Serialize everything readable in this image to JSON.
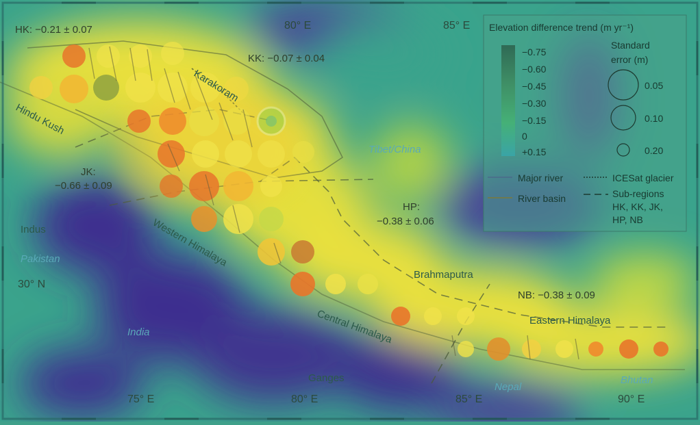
{
  "legend": {
    "title": "Elevation difference trend (m yr⁻¹)",
    "trend_scale": [
      "−0.75",
      "−0.60",
      "−0.45",
      "−0.30",
      "−0.15",
      "0",
      "+0.15"
    ],
    "standard_error_title_1": "Standard",
    "standard_error_title_2": "error (m)",
    "standard_error_values": [
      "0.05",
      "0.10",
      "0.20"
    ],
    "major_river": "Major river",
    "river_basin": "River basin",
    "icesat_glacier": "ICESat glacier",
    "subregions_1": "Sub-regions",
    "subregions_2": "HK, KK, JK,",
    "subregions_3": "HP, NB"
  },
  "axes": {
    "lon_top": [
      "80° E",
      "85° E"
    ],
    "lon_bottom": [
      "75° E",
      "80° E",
      "85° E",
      "90° E"
    ],
    "lat": "30° N"
  },
  "regions": {
    "hk": "HK: −0.21 ± 0.07",
    "kk": "KK: −0.07 ± 0.04",
    "jk_1": "JK:",
    "jk_2": "−0.66 ± 0.09",
    "hp_1": "HP:",
    "hp_2": "−0.38 ± 0.06",
    "nb": "NB: −0.38 ± 0.09"
  },
  "places": {
    "karakoram": "Karakoram",
    "hindu_kush": "Hindu Kush",
    "tibet": "Tibet/China",
    "indus": "Indus",
    "pakistan": "Pakistan",
    "india": "India",
    "western_himalaya": "Western Himalaya",
    "central_himalaya": "Central Himalaya",
    "eastern_himalaya": "Eastern Himalaya",
    "brahmaputra": "Brahmaputra",
    "ganges": "Ganges",
    "nepal": "Nepal",
    "bhutan": "Bhutan"
  },
  "colors": {
    "heat_low": "#3d2f8f",
    "heat_mid": "#2aa38a",
    "heat_high": "#f4e43a",
    "dot_strong": "#e8762a",
    "dot_mid": "#f2b632",
    "dot_weak": "#f0e24a",
    "dot_green": "#8fd14a"
  }
}
